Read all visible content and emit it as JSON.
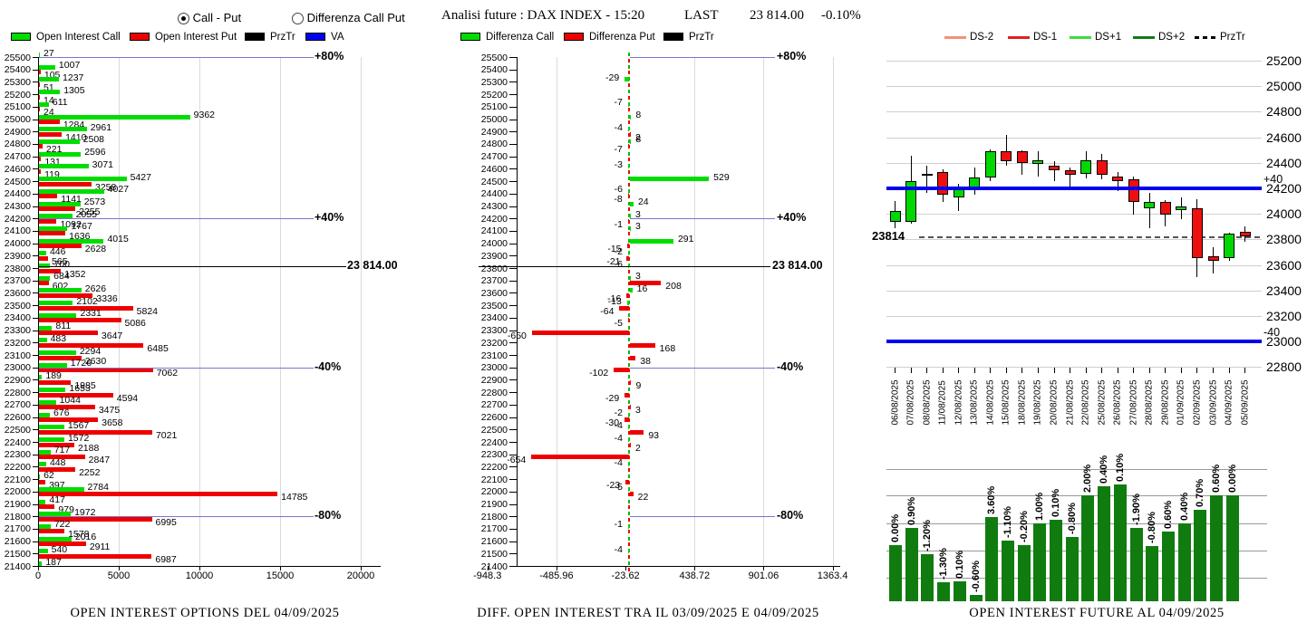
{
  "controls": {
    "mode_selected": "Call - Put",
    "mode_other": "Differenza Call Put"
  },
  "header": {
    "title": "Analisi future : DAX INDEX - 15:20",
    "last_label": "LAST",
    "last_value": "23 814.00",
    "last_change": "-0.10%"
  },
  "colors": {
    "call_green": "#00dd00",
    "put_red": "#ee0000",
    "przt_black": "#000000",
    "va_blue": "#0000ee",
    "ref_blue": "#7777cc",
    "future_bar_green": "#107c10",
    "candle_green": "#00d800",
    "candle_red": "#ee0f0f",
    "ds_minus2": "#f4907a",
    "ds_minus1": "#e02020",
    "ds_plus1": "#3ddd3d",
    "ds_plus2": "#157a15"
  },
  "legends": {
    "left": [
      {
        "label": "Open Interest Call",
        "color": "#00dd00"
      },
      {
        "label": "Open Interest Put",
        "color": "#ee0000"
      },
      {
        "label": "PrzTr",
        "color": "#000000"
      },
      {
        "label": "VA",
        "color": "#0000ee"
      }
    ],
    "middle": [
      {
        "label": "Differenza Call",
        "color": "#00dd00"
      },
      {
        "label": "Differenza Put",
        "color": "#ee0000"
      },
      {
        "label": "PrzTr",
        "color": "#000000"
      }
    ],
    "right": [
      {
        "label": "DS-2",
        "color": "#f4907a",
        "dashed": false
      },
      {
        "label": "DS-1",
        "color": "#e02020",
        "dashed": false
      },
      {
        "label": "DS+1",
        "color": "#3ddd3d",
        "dashed": false
      },
      {
        "label": "DS+2",
        "color": "#157a15",
        "dashed": false
      },
      {
        "label": "PrzTr",
        "color": "#000000",
        "dashed": true
      }
    ]
  },
  "chart_data": [
    {
      "type": "bar",
      "orientation": "horizontal",
      "title": "OPEN INTEREST OPTIONS DEL 04/09/2025",
      "x_ticks": [
        0,
        5000,
        10000,
        15000,
        20000
      ],
      "xlim": [
        0,
        21000
      ],
      "strikes": [
        25500,
        25400,
        25300,
        25200,
        25100,
        25000,
        24900,
        24800,
        24700,
        24600,
        24500,
        24400,
        24300,
        24200,
        24100,
        24000,
        23900,
        23800,
        23700,
        23600,
        23500,
        23400,
        23300,
        23200,
        23100,
        23000,
        22900,
        22800,
        22700,
        22600,
        22500,
        22400,
        22300,
        22200,
        22100,
        22000,
        21900,
        21800,
        21700,
        21600,
        21500,
        21400
      ],
      "series": [
        {
          "name": "Open Interest Call",
          "color": "#00dd00",
          "values": [
            27,
            1007,
            1237,
            1305,
            611,
            9362,
            2961,
            2508,
            2596,
            3071,
            5427,
            4027,
            2573,
            2055,
            1767,
            4015,
            446,
            700,
            684,
            2626,
            2102,
            2331,
            811,
            483,
            2294,
            1726,
            189,
            1653,
            1044,
            676,
            1567,
            1572,
            717,
            448,
            62,
            2784,
            417,
            1972,
            722,
            2016,
            540,
            187
          ]
        },
        {
          "name": "Open Interest Put",
          "color": "#ee0000",
          "values": [
            0,
            105,
            51,
            14,
            24,
            1284,
            1410,
            221,
            131,
            119,
            3258,
            1141,
            2255,
            1092,
            1636,
            2628,
            565,
            1352,
            602,
            3336,
            5824,
            5086,
            3647,
            6485,
            2630,
            7062,
            1985,
            4594,
            3475,
            3658,
            7021,
            2188,
            2847,
            2252,
            397,
            14785,
            979,
            6995,
            1578,
            2911,
            6987,
            0
          ]
        }
      ],
      "ref_lines": [
        {
          "label": "+80%",
          "strike": 25500,
          "style": "blue"
        },
        {
          "label": "+40%",
          "strike": 24200,
          "style": "blue"
        },
        {
          "label": "23 814.00",
          "strike": 23814,
          "style": "black"
        },
        {
          "label": "-40%",
          "strike": 23000,
          "style": "blue"
        },
        {
          "label": "-80%",
          "strike": 21800,
          "style": "blue"
        }
      ]
    },
    {
      "type": "bar",
      "orientation": "horizontal",
      "title": "DIFF. OPEN INTEREST TRA IL 03/09/2025 E 04/09/2025",
      "x_ticks": [
        -948.3,
        -485.96,
        -23.62,
        438.72,
        901.06,
        1363.4
      ],
      "x_tick_labels": [
        "-948.3",
        "-485.96",
        "-23.62",
        "438.72",
        "901.06",
        "1363.4"
      ],
      "strikes": [
        25500,
        25400,
        25300,
        25200,
        25100,
        25000,
        24900,
        24800,
        24700,
        24600,
        24500,
        24400,
        24300,
        24200,
        24100,
        24000,
        23900,
        23800,
        23700,
        23600,
        23500,
        23400,
        23300,
        23200,
        23100,
        23000,
        22900,
        22800,
        22700,
        22600,
        22500,
        22400,
        22300,
        22200,
        22100,
        22000,
        21900,
        21800,
        21700,
        21600,
        21500,
        21400
      ],
      "series": [
        {
          "name": "Differenza Call",
          "color": "#00dd00",
          "values": [
            0,
            0,
            -29,
            0,
            -7,
            8,
            -4,
            8,
            0,
            -3,
            529,
            -6,
            24,
            3,
            3,
            291,
            -2,
            -6,
            3,
            16,
            -13,
            0,
            0,
            0,
            0,
            0,
            0,
            0,
            0,
            -2,
            -4,
            -4,
            0,
            -4,
            0,
            -5,
            0,
            0,
            -1,
            0,
            -4,
            0
          ]
        },
        {
          "name": "Differenza Put",
          "color": "#ee0000",
          "values": [
            0,
            0,
            0,
            0,
            0,
            0,
            2,
            -7,
            0,
            0,
            0,
            -8,
            0,
            -1,
            0,
            -15,
            -21,
            0,
            208,
            -16,
            -64,
            -5,
            -650,
            168,
            38,
            -102,
            9,
            -29,
            3,
            -30,
            93,
            2,
            -654,
            0,
            -23,
            22,
            0,
            0,
            0,
            0,
            0,
            0
          ]
        }
      ],
      "ref_lines": [
        {
          "label": "+80%",
          "strike": 25500,
          "style": "blue"
        },
        {
          "label": "+40%",
          "strike": 24200,
          "style": "blue"
        },
        {
          "label": "23 814.00",
          "strike": 23814,
          "style": "black"
        },
        {
          "label": "-40%",
          "strike": 23000,
          "style": "blue"
        },
        {
          "label": "-80%",
          "strike": 21800,
          "style": "blue"
        }
      ]
    },
    {
      "type": "candlestick",
      "y_ticks": [
        25200,
        25000,
        24800,
        24600,
        24400,
        24200,
        24000,
        23800,
        23600,
        23400,
        23200,
        23000,
        22800
      ],
      "ylim": [
        22800,
        25200
      ],
      "dates": [
        "06/08/2025",
        "07/08/2025",
        "08/08/2025",
        "11/08/2025",
        "12/08/2025",
        "13/08/2025",
        "14/08/2025",
        "15/08/2025",
        "18/08/2025",
        "19/08/2025",
        "20/08/2025",
        "21/08/2025",
        "22/08/2025",
        "25/08/2025",
        "26/08/2025",
        "27/08/2025",
        "28/08/2025",
        "29/08/2025",
        "01/09/2025",
        "02/09/2025",
        "03/09/2025",
        "04/09/2025",
        "05/09/2025"
      ],
      "ohlc": [
        [
          23940,
          24100,
          23890,
          24025
        ],
        [
          23940,
          24455,
          23920,
          24255
        ],
        [
          24300,
          24375,
          24165,
          24315
        ],
        [
          24330,
          24350,
          24095,
          24150
        ],
        [
          24130,
          24235,
          24025,
          24195
        ],
        [
          24195,
          24360,
          24150,
          24285
        ],
        [
          24285,
          24505,
          24255,
          24490
        ],
        [
          24490,
          24615,
          24375,
          24410
        ],
        [
          24490,
          24500,
          24305,
          24400
        ],
        [
          24390,
          24490,
          24290,
          24420
        ],
        [
          24375,
          24410,
          24255,
          24340
        ],
        [
          24340,
          24360,
          24210,
          24305
        ],
        [
          24315,
          24490,
          24280,
          24420
        ],
        [
          24420,
          24470,
          24270,
          24305
        ],
        [
          24290,
          24325,
          24180,
          24255
        ],
        [
          24270,
          24290,
          23995,
          24095
        ],
        [
          24045,
          24165,
          23890,
          24095
        ],
        [
          24095,
          24105,
          23900,
          23995
        ],
        [
          24030,
          24130,
          23960,
          24060
        ],
        [
          24045,
          24115,
          23505,
          23655
        ],
        [
          23670,
          23740,
          23535,
          23635
        ],
        [
          23655,
          23855,
          23635,
          23845
        ],
        [
          23860,
          23900,
          23780,
          23825
        ]
      ],
      "hlines": [
        {
          "label": "+40",
          "value": 24200,
          "style": "solid-blue"
        },
        {
          "label": "-40",
          "value": 23000,
          "style": "solid-blue"
        },
        {
          "label": "23814",
          "value": 23814,
          "style": "dashed-black"
        }
      ]
    },
    {
      "type": "bar",
      "title": "OPEN INTEREST FUTURE AL 04/09/2025",
      "pct_labels": [
        "0.00%",
        "0.90%",
        "-1.20%",
        "-1.30%",
        "0.10%",
        "-0.60%",
        "3.60%",
        "-1.10%",
        "-0.20%",
        "1.00%",
        "0.10%",
        "-0.80%",
        "2.00%",
        "0.40%",
        "0.10%",
        "-1.90%",
        "-0.80%",
        "0.60%",
        "0.40%",
        "0.70%",
        "0.60%",
        "0.00%"
      ],
      "heights_pct_of_plot": [
        42,
        55,
        35,
        14,
        15,
        5,
        63,
        45,
        42,
        58,
        61,
        48,
        79,
        86,
        87,
        55,
        41,
        52,
        58,
        68,
        79,
        79
      ]
    }
  ]
}
